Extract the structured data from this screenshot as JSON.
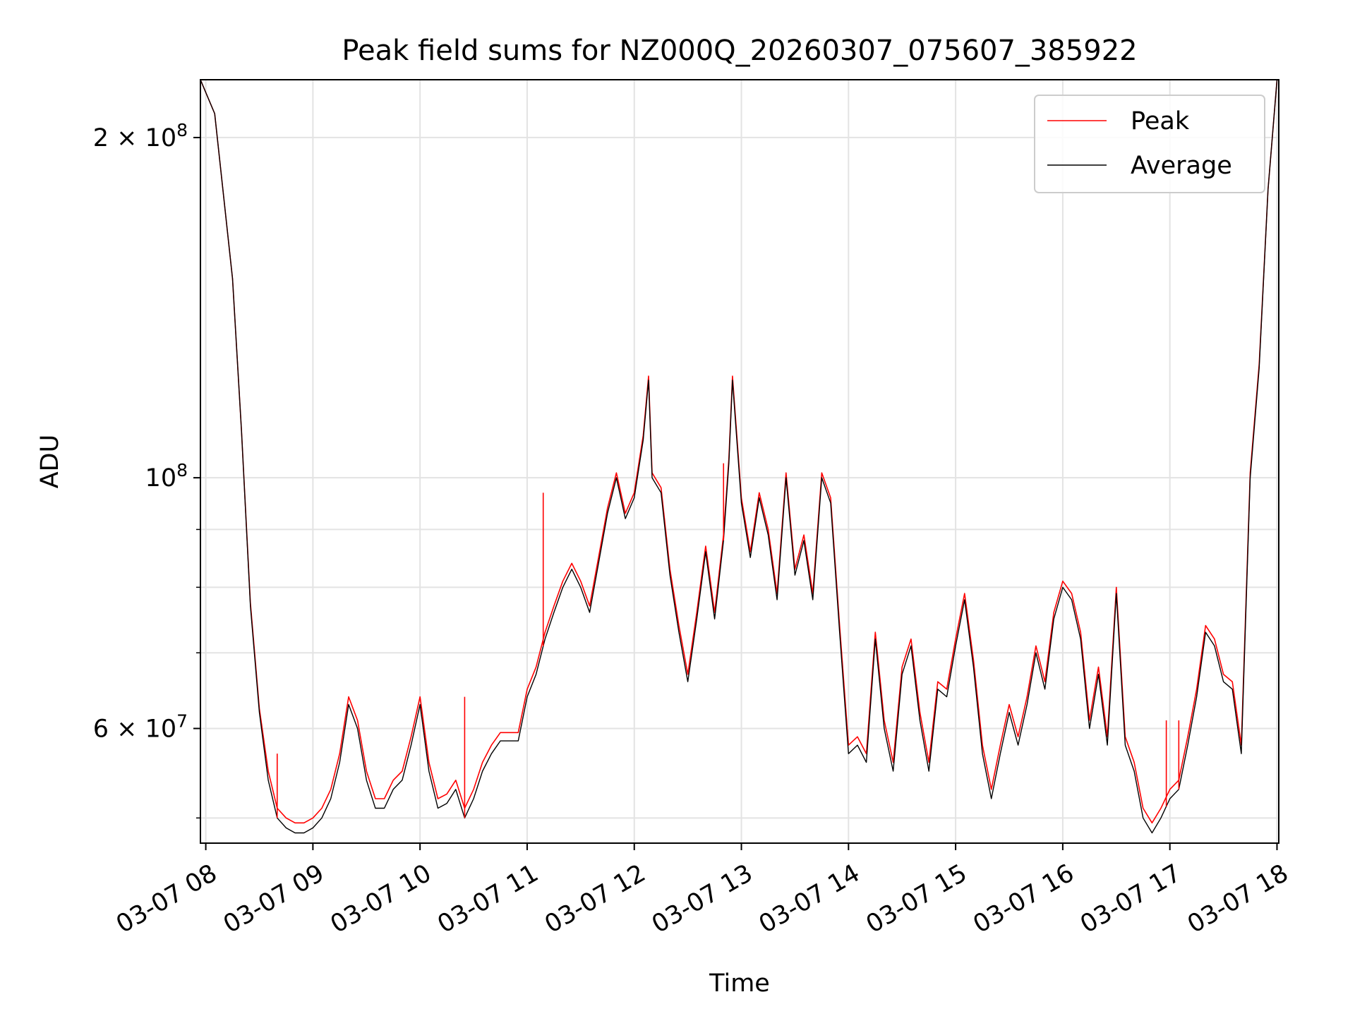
{
  "chart_data": {
    "type": "line",
    "title": "Peak field sums for NZ000Q_20260307_075607_385922",
    "xlabel": "Time",
    "ylabel": "ADU",
    "yscale": "log",
    "ylim": [
      47500000,
      225000000
    ],
    "xlim": [
      "2026-03-07 07:57",
      "2026-03-07 18:01"
    ],
    "grid": true,
    "legend_position": "top-right",
    "x_ticks": [
      "03-07 08",
      "03-07 09",
      "03-07 10",
      "03-07 11",
      "03-07 12",
      "03-07 13",
      "03-07 14",
      "03-07 15",
      "03-07 16",
      "03-07 17",
      "03-07 18"
    ],
    "y_ticks": [
      {
        "value": 200000000,
        "label": "2 × 10^8",
        "mantissa": "2",
        "exponent": "8"
      },
      {
        "value": 100000000,
        "label": "10^8",
        "mantissa": "",
        "exponent": "8"
      },
      {
        "value": 60000000,
        "label": "6 × 10^7",
        "mantissa": "6",
        "exponent": "7"
      }
    ],
    "x": [
      "07:57",
      "08:05",
      "08:15",
      "08:20",
      "08:25",
      "08:30",
      "08:35",
      "08:40",
      "08:45",
      "08:50",
      "08:55",
      "09:00",
      "09:05",
      "09:10",
      "09:15",
      "09:20",
      "09:25",
      "09:30",
      "09:35",
      "09:40",
      "09:45",
      "09:50",
      "09:55",
      "10:00",
      "10:05",
      "10:10",
      "10:15",
      "10:20",
      "10:25",
      "10:30",
      "10:35",
      "10:40",
      "10:45",
      "10:50",
      "10:55",
      "11:00",
      "11:05",
      "11:10",
      "11:15",
      "11:20",
      "11:25",
      "11:30",
      "11:35",
      "11:40",
      "11:45",
      "11:50",
      "11:55",
      "12:00",
      "12:05",
      "12:08",
      "12:10",
      "12:15",
      "12:20",
      "12:25",
      "12:30",
      "12:35",
      "12:40",
      "12:45",
      "12:50",
      "12:53",
      "12:55",
      "13:00",
      "13:05",
      "13:10",
      "13:15",
      "13:20",
      "13:25",
      "13:30",
      "13:35",
      "13:40",
      "13:45",
      "13:50",
      "13:55",
      "14:00",
      "14:05",
      "14:10",
      "14:15",
      "14:20",
      "14:25",
      "14:30",
      "14:35",
      "14:40",
      "14:45",
      "14:50",
      "14:55",
      "15:00",
      "15:05",
      "15:10",
      "15:15",
      "15:20",
      "15:25",
      "15:30",
      "15:35",
      "15:40",
      "15:45",
      "15:50",
      "15:55",
      "16:00",
      "16:05",
      "16:10",
      "16:15",
      "16:20",
      "16:25",
      "16:30",
      "16:35",
      "16:40",
      "16:45",
      "16:50",
      "16:55",
      "17:00",
      "17:05",
      "17:10",
      "17:15",
      "17:20",
      "17:25",
      "17:30",
      "17:35",
      "17:40",
      "17:45",
      "17:50",
      "17:55",
      "18:00"
    ],
    "series": [
      {
        "name": "Average",
        "color": "#000000",
        "values": [
          225000000,
          210000000,
          150000000,
          110000000,
          77000000,
          62000000,
          54000000,
          50000000,
          49000000,
          48500000,
          48500000,
          49000000,
          50000000,
          52000000,
          56000000,
          63000000,
          60000000,
          54000000,
          51000000,
          51000000,
          53000000,
          54000000,
          58000000,
          63000000,
          55000000,
          51000000,
          51500000,
          53000000,
          50000000,
          52000000,
          55000000,
          57000000,
          58500000,
          58500000,
          58500000,
          64000000,
          67000000,
          72000000,
          76000000,
          80000000,
          83000000,
          80000000,
          76000000,
          84000000,
          93000000,
          100000000,
          92000000,
          96000000,
          108000000,
          122000000,
          100000000,
          97000000,
          82000000,
          73000000,
          66000000,
          75000000,
          86000000,
          75000000,
          88000000,
          103000000,
          122000000,
          95000000,
          85000000,
          96000000,
          89000000,
          78000000,
          100000000,
          82000000,
          88000000,
          78000000,
          100000000,
          95000000,
          73000000,
          57000000,
          58000000,
          56000000,
          72000000,
          60000000,
          55000000,
          67000000,
          71000000,
          61000000,
          55000000,
          65000000,
          64000000,
          71000000,
          78000000,
          68000000,
          57000000,
          52000000,
          57000000,
          62000000,
          58000000,
          63000000,
          70000000,
          65000000,
          75000000,
          80000000,
          78000000,
          72000000,
          60000000,
          67000000,
          58000000,
          79000000,
          58000000,
          55000000,
          50000000,
          48500000,
          50000000,
          52000000,
          53000000,
          58000000,
          64000000,
          73000000,
          71000000,
          66000000,
          65000000,
          57000000,
          100000000,
          125000000,
          180000000,
          225000000
        ]
      },
      {
        "name": "Peak",
        "color": "#ff0000",
        "values": [
          225000000,
          210000000,
          150000000,
          110000000,
          77500000,
          62500000,
          55000000,
          51000000,
          50000000,
          49500000,
          49500000,
          50000000,
          51000000,
          53000000,
          57000000,
          64000000,
          61000000,
          55000000,
          52000000,
          52000000,
          54000000,
          55000000,
          59000000,
          64000000,
          56000000,
          52000000,
          52500000,
          54000000,
          51000000,
          53000000,
          56000000,
          58000000,
          59500000,
          59500000,
          59500000,
          65000000,
          68000000,
          73000000,
          77000000,
          81000000,
          84000000,
          81000000,
          77000000,
          85000000,
          94000000,
          101000000,
          93000000,
          97000000,
          109000000,
          123000000,
          101000000,
          98000000,
          83000000,
          74000000,
          67000000,
          76000000,
          87000000,
          76000000,
          89000000,
          104000000,
          123000000,
          96000000,
          86000000,
          97000000,
          90000000,
          79000000,
          101000000,
          83000000,
          89000000,
          79000000,
          101000000,
          96000000,
          74000000,
          58000000,
          59000000,
          57000000,
          73000000,
          61000000,
          56000000,
          68000000,
          72000000,
          62000000,
          56000000,
          66000000,
          65000000,
          72000000,
          79000000,
          69000000,
          58000000,
          53000000,
          58000000,
          63000000,
          59000000,
          64000000,
          71000000,
          66000000,
          76000000,
          81000000,
          79000000,
          73000000,
          61000000,
          68000000,
          59000000,
          80000000,
          59000000,
          56000000,
          51000000,
          49500000,
          51000000,
          53000000,
          54000000,
          59000000,
          65000000,
          74000000,
          72000000,
          67000000,
          66000000,
          58000000,
          101000000,
          126000000,
          180000000,
          225000000
        ]
      }
    ],
    "spikes": [
      {
        "x": "08:40",
        "y": 57000000
      },
      {
        "x": "10:25",
        "y": 64000000
      },
      {
        "x": "11:09",
        "y": 97000000
      },
      {
        "x": "12:50",
        "y": 103000000
      },
      {
        "x": "16:58",
        "y": 61000000
      },
      {
        "x": "17:05",
        "y": 61000000
      }
    ]
  }
}
